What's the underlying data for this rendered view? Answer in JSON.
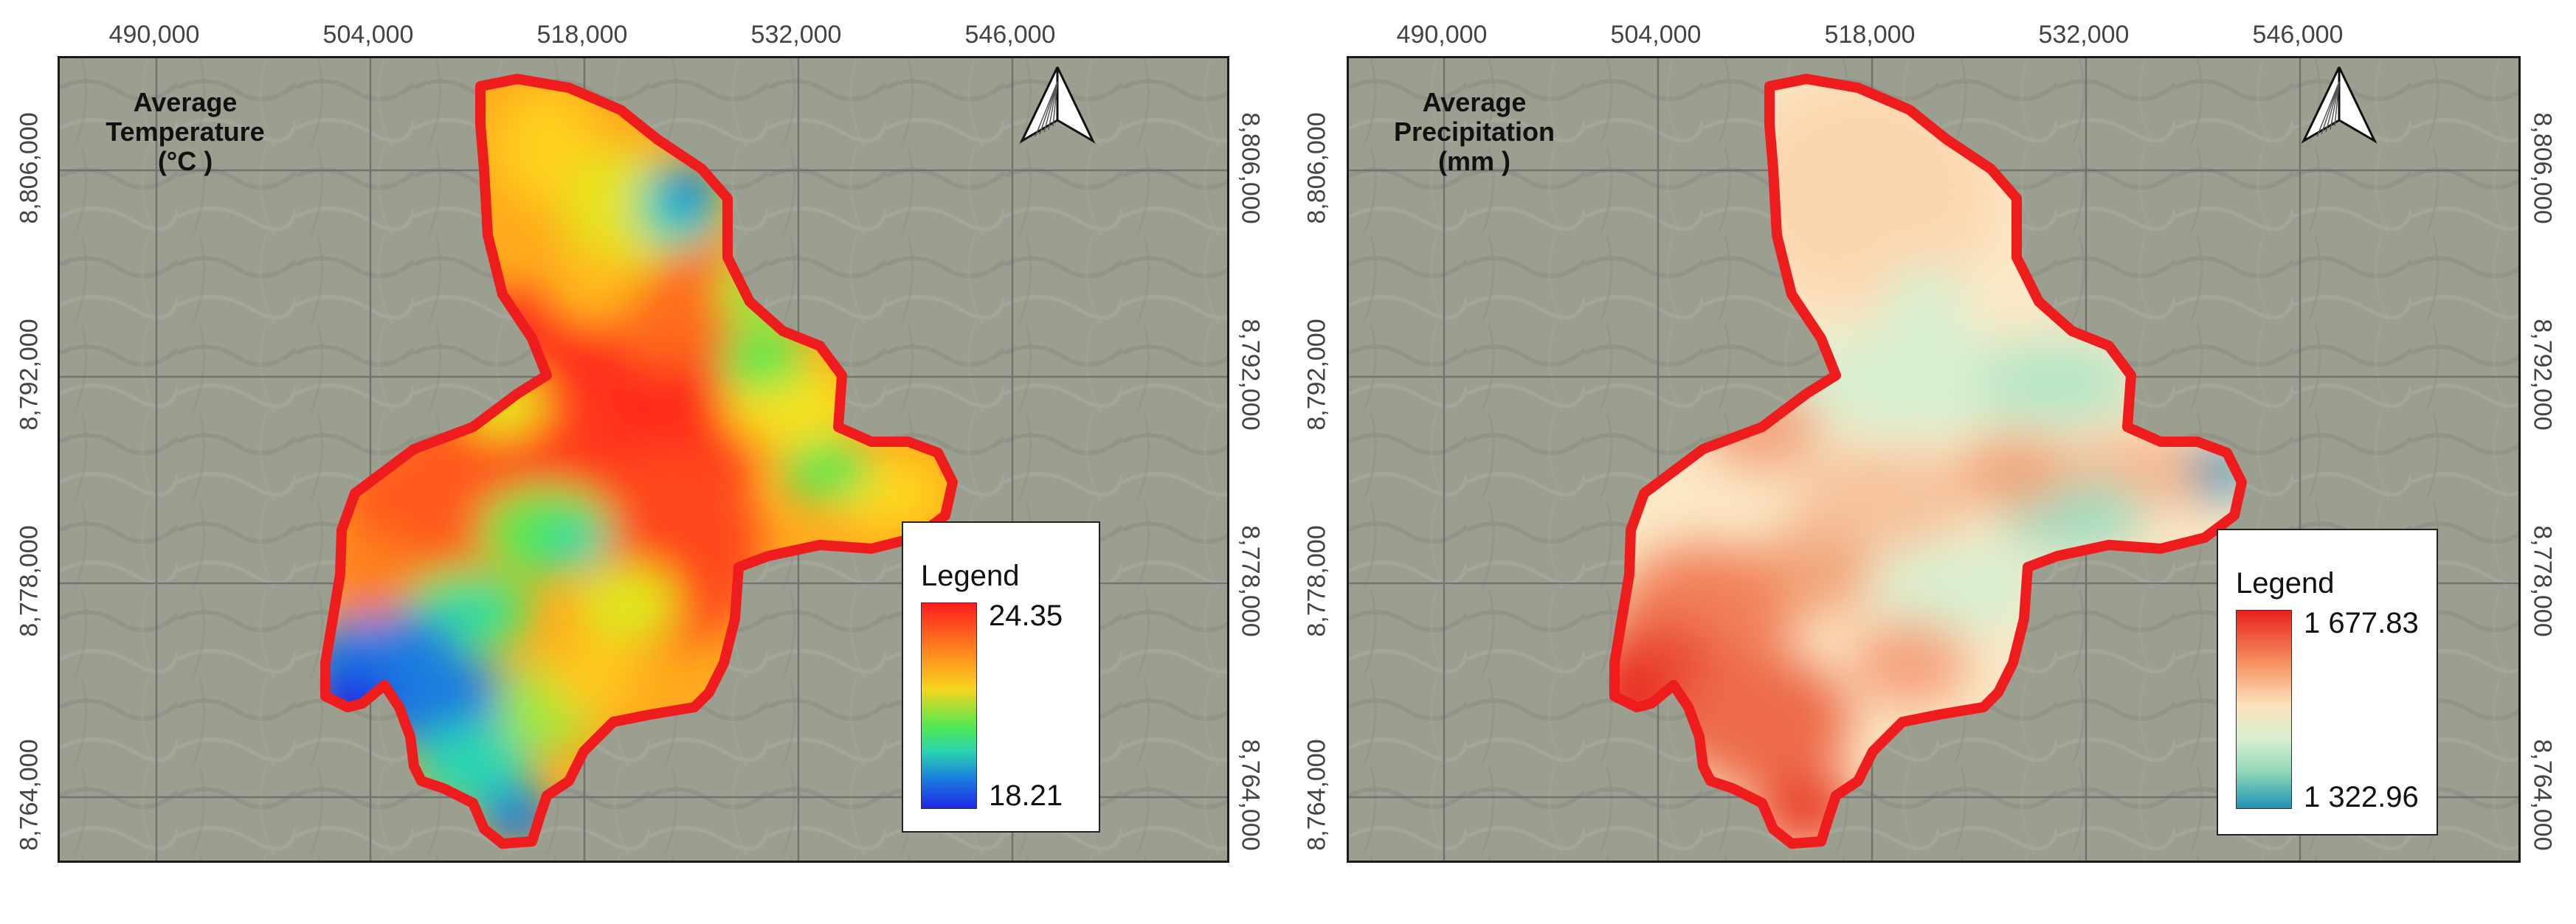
{
  "maps": {
    "left": {
      "title_line1": "Average",
      "title_line2": "Temperature",
      "title_line3": "(°C )",
      "legend_title": "Legend",
      "legend_max": "24.35",
      "legend_min": "18.21",
      "ramp_colors": [
        "#ff1d1d",
        "#ff7f1e",
        "#f7d51e",
        "#53e850",
        "#2ad5b0",
        "#1a7bdf",
        "#1f27e6"
      ]
    },
    "right": {
      "title_line1": "Average",
      "title_line2": "Precipitation",
      "title_line3": "(mm )",
      "legend_title": "Legend",
      "legend_max": "1 677.83",
      "legend_min": "1 322.96",
      "ramp_colors": [
        "#e8211f",
        "#f58b5b",
        "#fce2bc",
        "#d8f0d0",
        "#8fd6b8",
        "#1e92b6"
      ]
    }
  },
  "axes": {
    "x_ticks": [
      "490,000",
      "504,000",
      "518,000",
      "532,000",
      "546,000"
    ],
    "y_ticks_left": [
      "8,806,000",
      "8,792,000",
      "8,778,000",
      "8,764,000"
    ],
    "y_ticks_right": [
      "8,806,000",
      "8,792,000",
      "8,778,000",
      "8,764,000"
    ]
  },
  "colors": {
    "boundary": "#ee1c1c",
    "basemap": "#9a9d90",
    "grid": "#6b6b6b"
  },
  "icons": {
    "north_arrow": "north-arrow-icon"
  }
}
